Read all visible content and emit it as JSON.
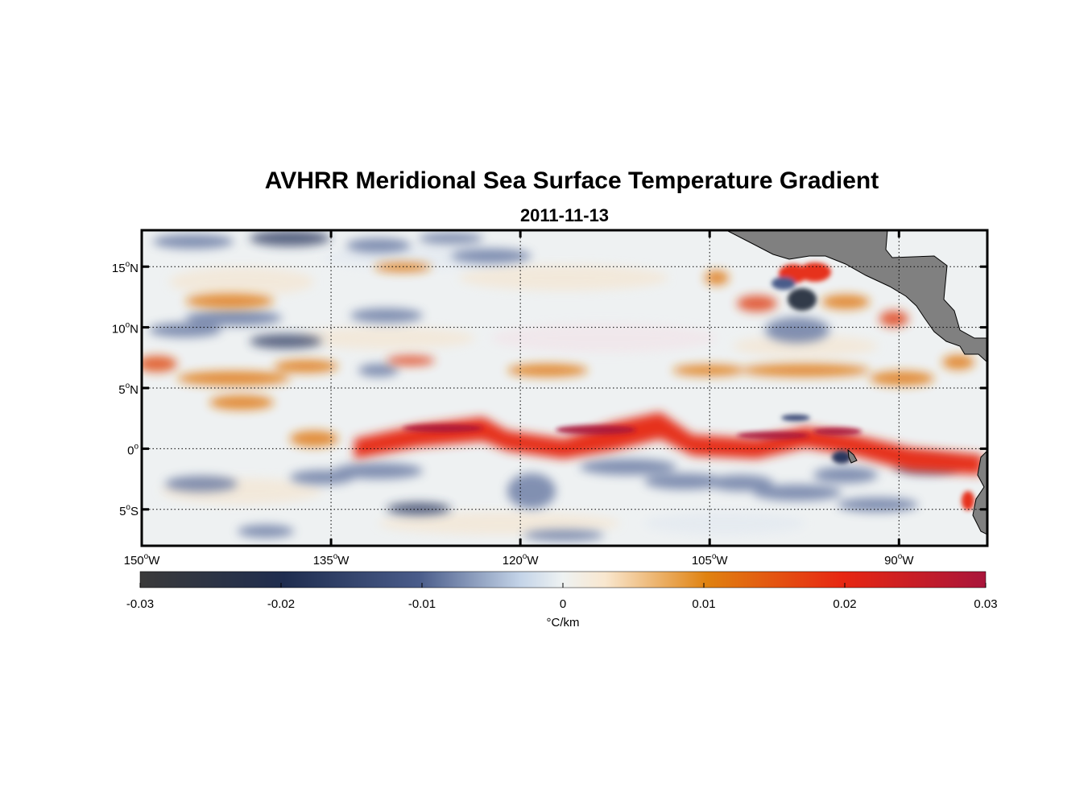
{
  "chart_data": {
    "type": "heatmap",
    "title": "AVHRR Meridional Sea Surface Temperature Gradient",
    "subtitle": "2011-11-13",
    "xlim": [
      -150,
      -83
    ],
    "ylim": [
      -8,
      18
    ],
    "x_ticks": [
      {
        "value": -150,
        "num": "150",
        "hem": "W"
      },
      {
        "value": -135,
        "num": "135",
        "hem": "W"
      },
      {
        "value": -120,
        "num": "120",
        "hem": "W"
      },
      {
        "value": -105,
        "num": "105",
        "hem": "W"
      },
      {
        "value": -90,
        "num": "90",
        "hem": "W"
      }
    ],
    "y_ticks": [
      {
        "value": 15,
        "num": "15",
        "hem": "N"
      },
      {
        "value": 10,
        "num": "10",
        "hem": "N"
      },
      {
        "value": 5,
        "num": "5",
        "hem": "N"
      },
      {
        "value": 0,
        "num": "0",
        "hem": ""
      },
      {
        "value": -5,
        "num": "5",
        "hem": "S"
      }
    ],
    "grid": true,
    "colorbar": {
      "range": [
        -0.03,
        0.03
      ],
      "ticks": [
        -0.03,
        -0.02,
        -0.01,
        0,
        0.01,
        0.02,
        0.03
      ],
      "tick_labels": [
        "-0.03",
        "-0.02",
        "-0.01",
        "0",
        "0.01",
        "0.02",
        "0.03"
      ],
      "label": "°C/km",
      "placement": "bottom"
    },
    "land_color": "#808080",
    "colors": [
      "#3a3a3a",
      "#1f2d4f",
      "#4a5c8a",
      "#c4d4e8",
      "#eef2f2",
      "#f9e7cf",
      "#e08210",
      "#e72712",
      "#a9153b"
    ]
  }
}
